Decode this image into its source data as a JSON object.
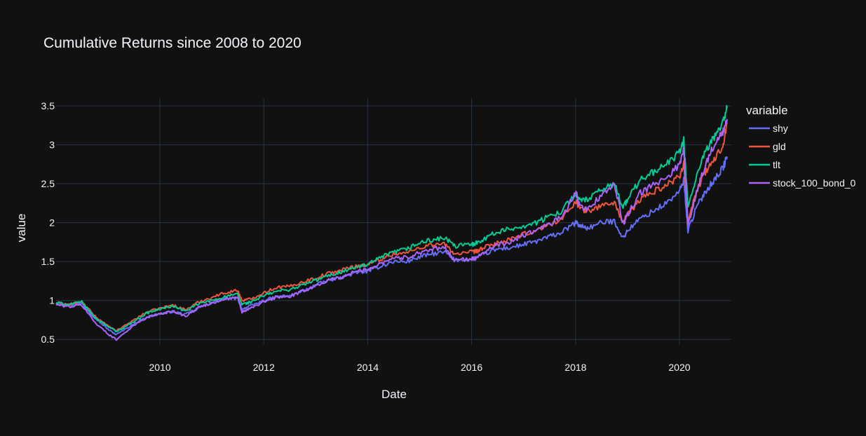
{
  "chart_data": {
    "type": "line",
    "title": "Cumulative Returns since 2008 to 2020",
    "xlabel": "Date",
    "ylabel": "value",
    "legend_title": "variable",
    "legend_position": "right",
    "grid": true,
    "xlim": [
      "2008-01-02",
      "2020-12-31"
    ],
    "ylim": [
      0.43,
      3.6
    ],
    "x_ticks": [
      "2010",
      "2012",
      "2014",
      "2016",
      "2018",
      "2020"
    ],
    "y_ticks": [
      "0.5",
      "1",
      "1.5",
      "2",
      "2.5",
      "3",
      "3.5"
    ],
    "x": [
      "2008-01",
      "2008-04",
      "2008-07",
      "2008-10",
      "2009-01",
      "2009-03",
      "2009-07",
      "2009-10",
      "2010-01",
      "2010-04",
      "2010-07",
      "2010-10",
      "2011-01",
      "2011-04",
      "2011-07",
      "2011-08",
      "2011-10",
      "2012-01",
      "2012-04",
      "2012-07",
      "2012-10",
      "2013-01",
      "2013-04",
      "2013-07",
      "2013-10",
      "2014-01",
      "2014-04",
      "2014-07",
      "2014-10",
      "2015-01",
      "2015-04",
      "2015-07",
      "2015-09",
      "2016-01",
      "2016-02",
      "2016-04",
      "2016-07",
      "2016-10",
      "2017-01",
      "2017-04",
      "2017-07",
      "2017-10",
      "2018-01",
      "2018-02",
      "2018-04",
      "2018-07",
      "2018-10",
      "2018-12",
      "2019-01",
      "2019-04",
      "2019-07",
      "2019-10",
      "2020-01",
      "2020-02",
      "2020-03",
      "2020-05",
      "2020-07",
      "2020-09",
      "2020-11",
      "2020-12"
    ],
    "series": [
      {
        "name": "shy",
        "color": "#636efa",
        "values": [
          0.96,
          0.94,
          0.96,
          0.78,
          0.63,
          0.56,
          0.7,
          0.79,
          0.83,
          0.86,
          0.82,
          0.91,
          0.97,
          1.02,
          1.03,
          0.89,
          0.93,
          1.0,
          1.05,
          1.06,
          1.12,
          1.2,
          1.26,
          1.3,
          1.35,
          1.38,
          1.44,
          1.5,
          1.5,
          1.56,
          1.6,
          1.62,
          1.52,
          1.53,
          1.55,
          1.6,
          1.66,
          1.68,
          1.72,
          1.76,
          1.82,
          1.88,
          2.0,
          1.96,
          1.93,
          2.0,
          2.02,
          1.8,
          1.9,
          2.05,
          2.15,
          2.25,
          2.4,
          2.55,
          1.9,
          2.2,
          2.4,
          2.55,
          2.7,
          2.85
        ]
      },
      {
        "name": "gld",
        "color": "#ef553b",
        "values": [
          0.97,
          0.95,
          0.98,
          0.8,
          0.67,
          0.61,
          0.75,
          0.85,
          0.9,
          0.94,
          0.88,
          0.98,
          1.04,
          1.1,
          1.13,
          1.0,
          1.02,
          1.1,
          1.17,
          1.18,
          1.24,
          1.29,
          1.35,
          1.39,
          1.44,
          1.46,
          1.53,
          1.6,
          1.61,
          1.68,
          1.72,
          1.72,
          1.6,
          1.62,
          1.63,
          1.68,
          1.74,
          1.78,
          1.85,
          1.9,
          1.98,
          2.05,
          2.28,
          2.18,
          2.15,
          2.22,
          2.26,
          2.0,
          2.1,
          2.3,
          2.4,
          2.48,
          2.6,
          2.75,
          2.05,
          2.4,
          2.65,
          2.8,
          3.0,
          3.28
        ]
      },
      {
        "name": "tlt",
        "color": "#00cc96",
        "values": [
          0.97,
          0.95,
          0.98,
          0.78,
          0.67,
          0.6,
          0.73,
          0.84,
          0.89,
          0.93,
          0.86,
          0.96,
          1.0,
          1.05,
          1.08,
          0.95,
          0.98,
          1.06,
          1.12,
          1.14,
          1.2,
          1.26,
          1.32,
          1.37,
          1.42,
          1.46,
          1.55,
          1.62,
          1.66,
          1.74,
          1.78,
          1.8,
          1.7,
          1.72,
          1.74,
          1.8,
          1.88,
          1.92,
          1.96,
          2.0,
          2.08,
          2.16,
          2.38,
          2.28,
          2.3,
          2.42,
          2.5,
          2.2,
          2.3,
          2.55,
          2.65,
          2.75,
          2.9,
          3.05,
          2.2,
          2.6,
          2.9,
          3.1,
          3.3,
          3.47
        ]
      },
      {
        "name": "stock_100_bond_0",
        "color": "#ab63fa",
        "values": [
          0.95,
          0.92,
          0.94,
          0.72,
          0.57,
          0.5,
          0.68,
          0.78,
          0.83,
          0.86,
          0.8,
          0.91,
          0.97,
          1.02,
          1.04,
          0.85,
          0.9,
          0.98,
          1.04,
          1.05,
          1.12,
          1.19,
          1.26,
          1.3,
          1.37,
          1.4,
          1.48,
          1.55,
          1.55,
          1.62,
          1.66,
          1.67,
          1.52,
          1.53,
          1.55,
          1.63,
          1.71,
          1.75,
          1.84,
          1.9,
          1.98,
          2.08,
          2.38,
          2.2,
          2.18,
          2.35,
          2.5,
          1.98,
          2.1,
          2.38,
          2.48,
          2.58,
          2.75,
          2.95,
          1.95,
          2.4,
          2.75,
          3.0,
          3.15,
          3.33
        ]
      }
    ]
  }
}
